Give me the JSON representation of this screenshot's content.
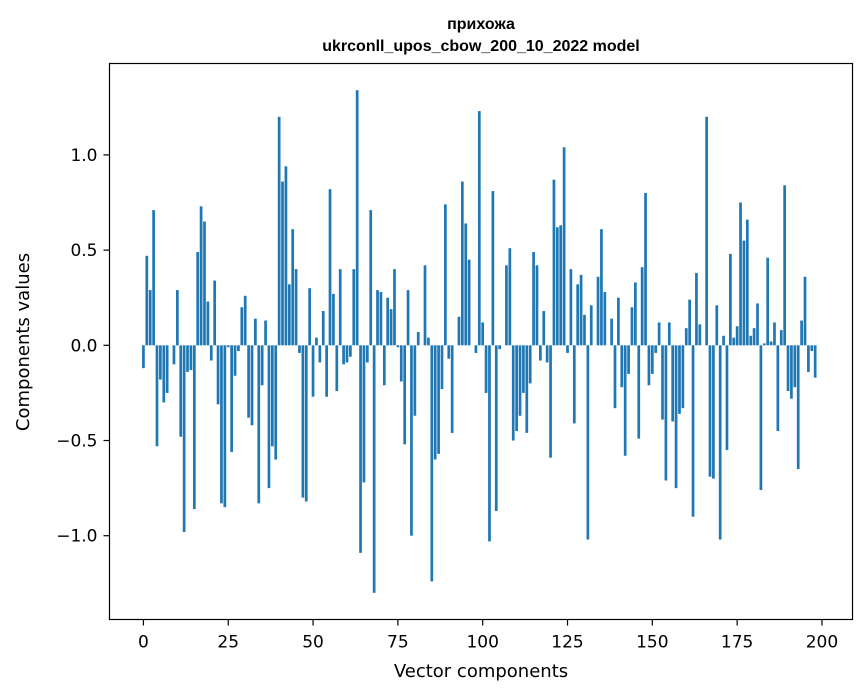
{
  "chart_data": {
    "type": "bar",
    "title": "прихожа",
    "subtitle": "ukrconll_upos_cbow_200_10_2022 model",
    "xlabel": "Vector components",
    "ylabel": "Components values",
    "xlim": [
      -10,
      209
    ],
    "ylim": [
      -1.44,
      1.48
    ],
    "xticks": [
      0,
      25,
      50,
      75,
      100,
      125,
      150,
      175,
      200
    ],
    "yticks": [
      1.0,
      0.5,
      0.0,
      -0.5,
      -1.0
    ],
    "ytick_labels": [
      "1.0",
      "0.5",
      "0.0",
      "−0.5",
      "−1.0"
    ],
    "color": "#1f77b4",
    "grid": false,
    "values": [
      -0.12,
      0.47,
      0.29,
      0.71,
      -0.53,
      -0.18,
      -0.3,
      -0.25,
      0.0,
      -0.1,
      0.29,
      -0.48,
      -0.98,
      -0.14,
      -0.13,
      -0.86,
      0.49,
      0.73,
      0.65,
      0.23,
      -0.08,
      0.34,
      -0.31,
      -0.83,
      -0.85,
      -0.01,
      -0.56,
      -0.16,
      -0.03,
      0.2,
      0.26,
      -0.38,
      -0.42,
      0.14,
      -0.83,
      -0.21,
      0.13,
      -0.75,
      -0.53,
      -0.6,
      1.2,
      0.86,
      0.94,
      0.32,
      0.61,
      0.4,
      -0.04,
      -0.8,
      -0.82,
      0.3,
      -0.27,
      0.04,
      -0.09,
      0.18,
      -0.27,
      0.82,
      0.27,
      -0.24,
      0.4,
      -0.1,
      -0.09,
      -0.06,
      0.4,
      1.34,
      -1.09,
      -0.72,
      -0.09,
      0.71,
      -1.3,
      0.29,
      0.28,
      -0.21,
      0.25,
      0.19,
      0.4,
      -0.01,
      -0.19,
      -0.52,
      0.29,
      -1.0,
      -0.37,
      0.07,
      0.0,
      0.42,
      0.04,
      -1.24,
      -0.6,
      -0.57,
      -0.23,
      0.74,
      -0.07,
      -0.46,
      0.0,
      0.15,
      0.86,
      0.64,
      0.45,
      0.0,
      -0.04,
      1.23,
      0.12,
      -0.25,
      -1.03,
      0.81,
      -0.87,
      -0.02,
      0.0,
      0.42,
      0.51,
      -0.5,
      -0.45,
      -0.37,
      -0.25,
      -0.46,
      -0.2,
      0.49,
      0.42,
      -0.08,
      0.18,
      -0.09,
      -0.59,
      0.87,
      0.62,
      0.63,
      1.04,
      -0.04,
      0.4,
      -0.41,
      0.32,
      0.37,
      0.16,
      -1.02,
      0.21,
      0.0,
      0.36,
      0.61,
      0.28,
      0.0,
      0.14,
      -0.33,
      0.25,
      -0.22,
      -0.58,
      -0.15,
      0.2,
      0.33,
      -0.49,
      0.41,
      0.8,
      -0.21,
      -0.15,
      -0.04,
      0.12,
      -0.39,
      -0.71,
      0.12,
      -0.4,
      -0.75,
      -0.36,
      -0.33,
      0.09,
      0.24,
      -0.9,
      0.38,
      0.11,
      0.0,
      1.2,
      -0.69,
      -0.7,
      0.21,
      -1.02,
      0.05,
      -0.55,
      0.48,
      0.04,
      0.1,
      0.75,
      0.55,
      0.66,
      0.05,
      0.09,
      0.22,
      -0.76,
      0.01,
      0.46,
      0.02,
      0.12,
      -0.45,
      0.08,
      0.84,
      -0.24,
      -0.28,
      -0.22,
      -0.65,
      0.13,
      0.36,
      -0.14,
      -0.03,
      -0.17
    ]
  }
}
